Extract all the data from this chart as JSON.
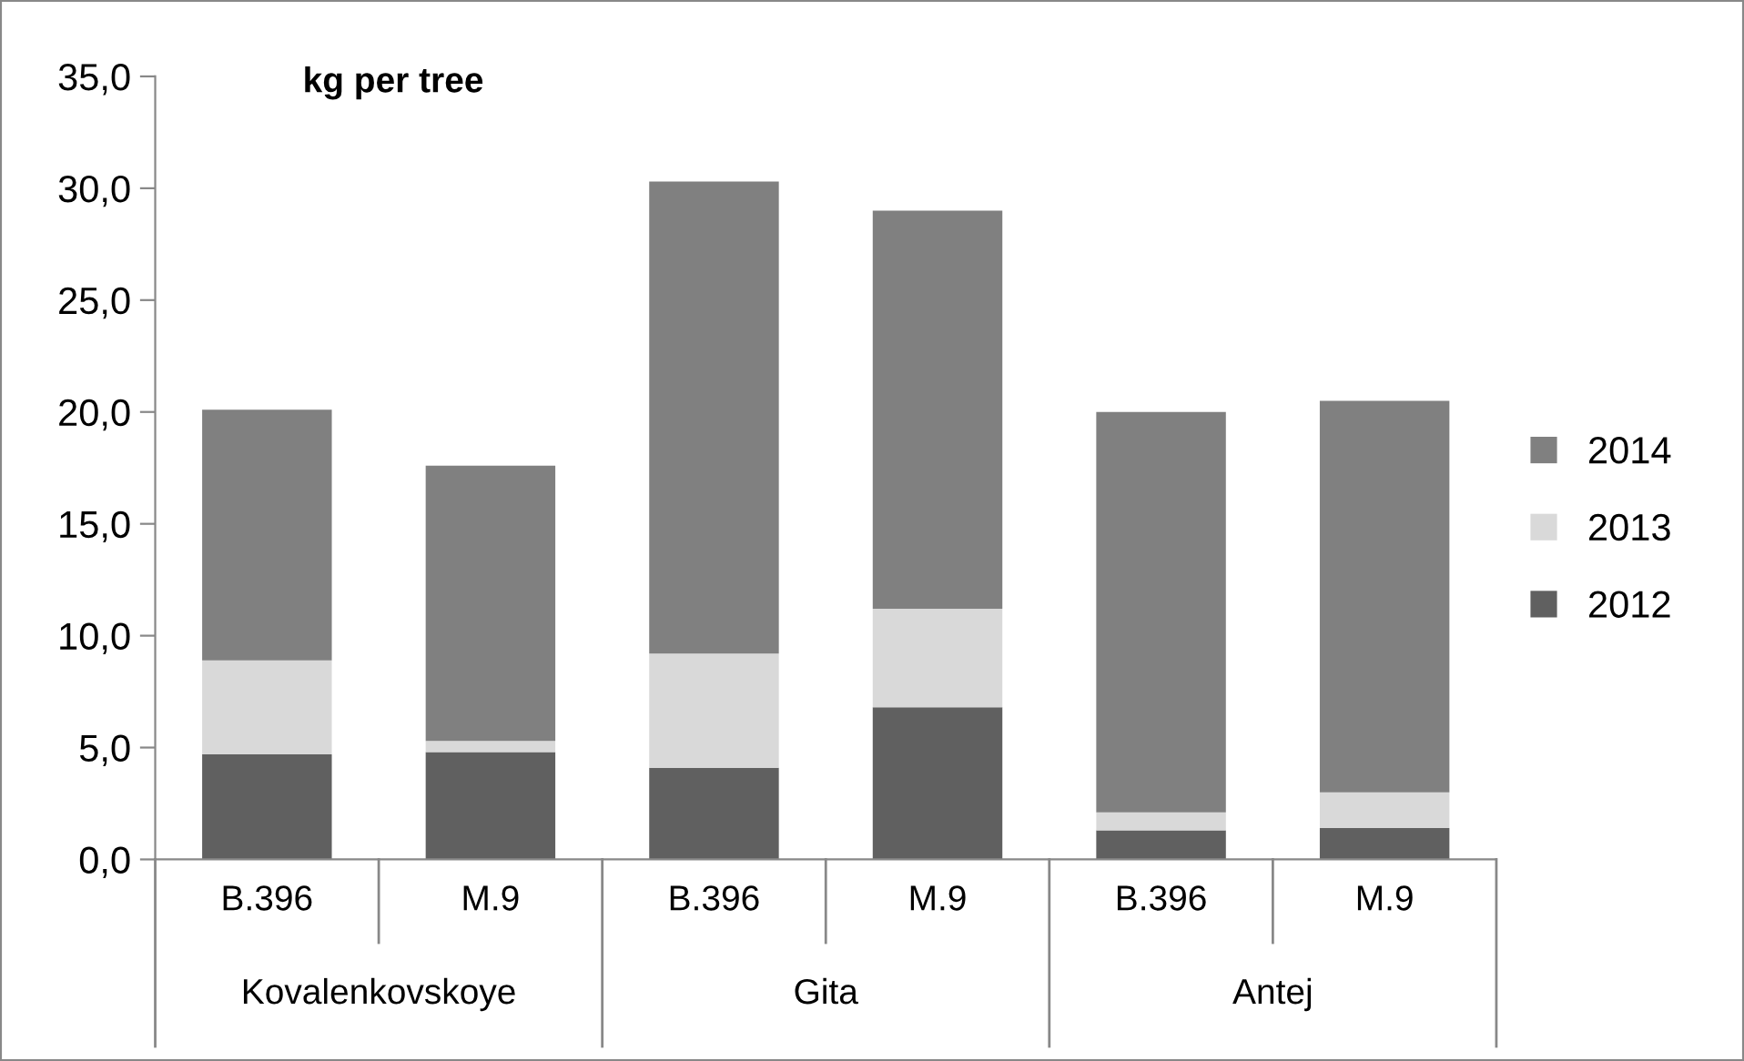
{
  "chart_data": {
    "type": "bar",
    "stacked": true,
    "ylabel": "kg per tree",
    "categories": [
      "B.396",
      "M.9",
      "B.396",
      "M.9",
      "B.396",
      "M.9"
    ],
    "annotations": [
      "Kovalenkovskoye",
      "Gita",
      "Antej"
    ],
    "series": [
      {
        "name": "2012",
        "color": "#606060",
        "values": [
          4.7,
          4.8,
          4.1,
          6.8,
          1.3,
          1.4
        ]
      },
      {
        "name": "2013",
        "color": "#d9d9d9",
        "values": [
          4.2,
          0.5,
          5.1,
          4.4,
          0.8,
          1.6
        ]
      },
      {
        "name": "2014",
        "color": "#808080",
        "values": [
          11.2,
          12.3,
          21.1,
          17.8,
          17.9,
          17.5
        ]
      }
    ],
    "ylim": [
      0,
      35
    ],
    "yticks": [
      {
        "value": 0,
        "label": "0,0"
      },
      {
        "value": 5,
        "label": "5,0"
      },
      {
        "value": 10,
        "label": "10,0"
      },
      {
        "value": 15,
        "label": "15,0"
      },
      {
        "value": 20,
        "label": "20,0"
      },
      {
        "value": 25,
        "label": "25,0"
      },
      {
        "value": 30,
        "label": "30,0"
      },
      {
        "value": 35,
        "label": "35,0"
      }
    ],
    "grid": false,
    "legend": "right"
  }
}
